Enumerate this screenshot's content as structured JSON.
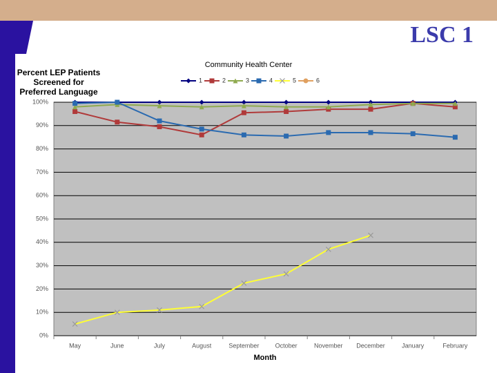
{
  "slide": {
    "title": "LSC 1"
  },
  "chart_data": {
    "type": "line",
    "title": "Community Health Center",
    "ylabel": "Percent LEP Patients Screened for Preferred Language",
    "xlabel": "Month",
    "categories": [
      "May",
      "June",
      "July",
      "August",
      "September",
      "October",
      "November",
      "December",
      "January",
      "February"
    ],
    "ylim": [
      0,
      100
    ],
    "yticks": [
      {
        "value": 0,
        "label": "0%"
      },
      {
        "value": 10,
        "label": "10%"
      },
      {
        "value": 20,
        "label": "20%"
      },
      {
        "value": 30,
        "label": "30%"
      },
      {
        "value": 40,
        "label": "40%"
      },
      {
        "value": 50,
        "label": "50%"
      },
      {
        "value": 60,
        "label": "60%"
      },
      {
        "value": 70,
        "label": "70%"
      },
      {
        "value": 80,
        "label": "80%"
      },
      {
        "value": 90,
        "label": "90%"
      },
      {
        "value": 100,
        "label": "100%"
      }
    ],
    "grid": true,
    "legend": "top",
    "series": [
      {
        "name": "1",
        "color": "#000080",
        "marker": "diamond",
        "values": [
          100,
          100,
          100,
          100,
          100,
          100,
          100,
          100,
          100,
          100
        ]
      },
      {
        "name": "2",
        "color": "#b03a3a",
        "marker": "square",
        "values": [
          96,
          91.5,
          89.5,
          86,
          95.5,
          96,
          97,
          97,
          99.5,
          98
        ]
      },
      {
        "name": "3",
        "color": "#8faa4f",
        "marker": "triangle",
        "values": [
          98,
          99,
          98.5,
          98,
          98.5,
          98,
          98,
          99,
          99.5,
          99.5
        ]
      },
      {
        "name": "4",
        "color": "#2a6ab0",
        "marker": "square",
        "values": [
          99.5,
          100,
          92,
          88.5,
          86,
          85.5,
          87,
          87,
          86.5,
          85
        ]
      },
      {
        "name": "5",
        "color": "#ffff33",
        "marker": "x",
        "values": [
          5,
          10,
          11,
          12.5,
          22.5,
          26.5,
          37,
          43,
          null,
          null
        ]
      },
      {
        "name": "6",
        "color": "#e0a060",
        "marker": "circle",
        "values": [
          null,
          null,
          null,
          null,
          null,
          null,
          null,
          null,
          null,
          null
        ]
      }
    ]
  }
}
